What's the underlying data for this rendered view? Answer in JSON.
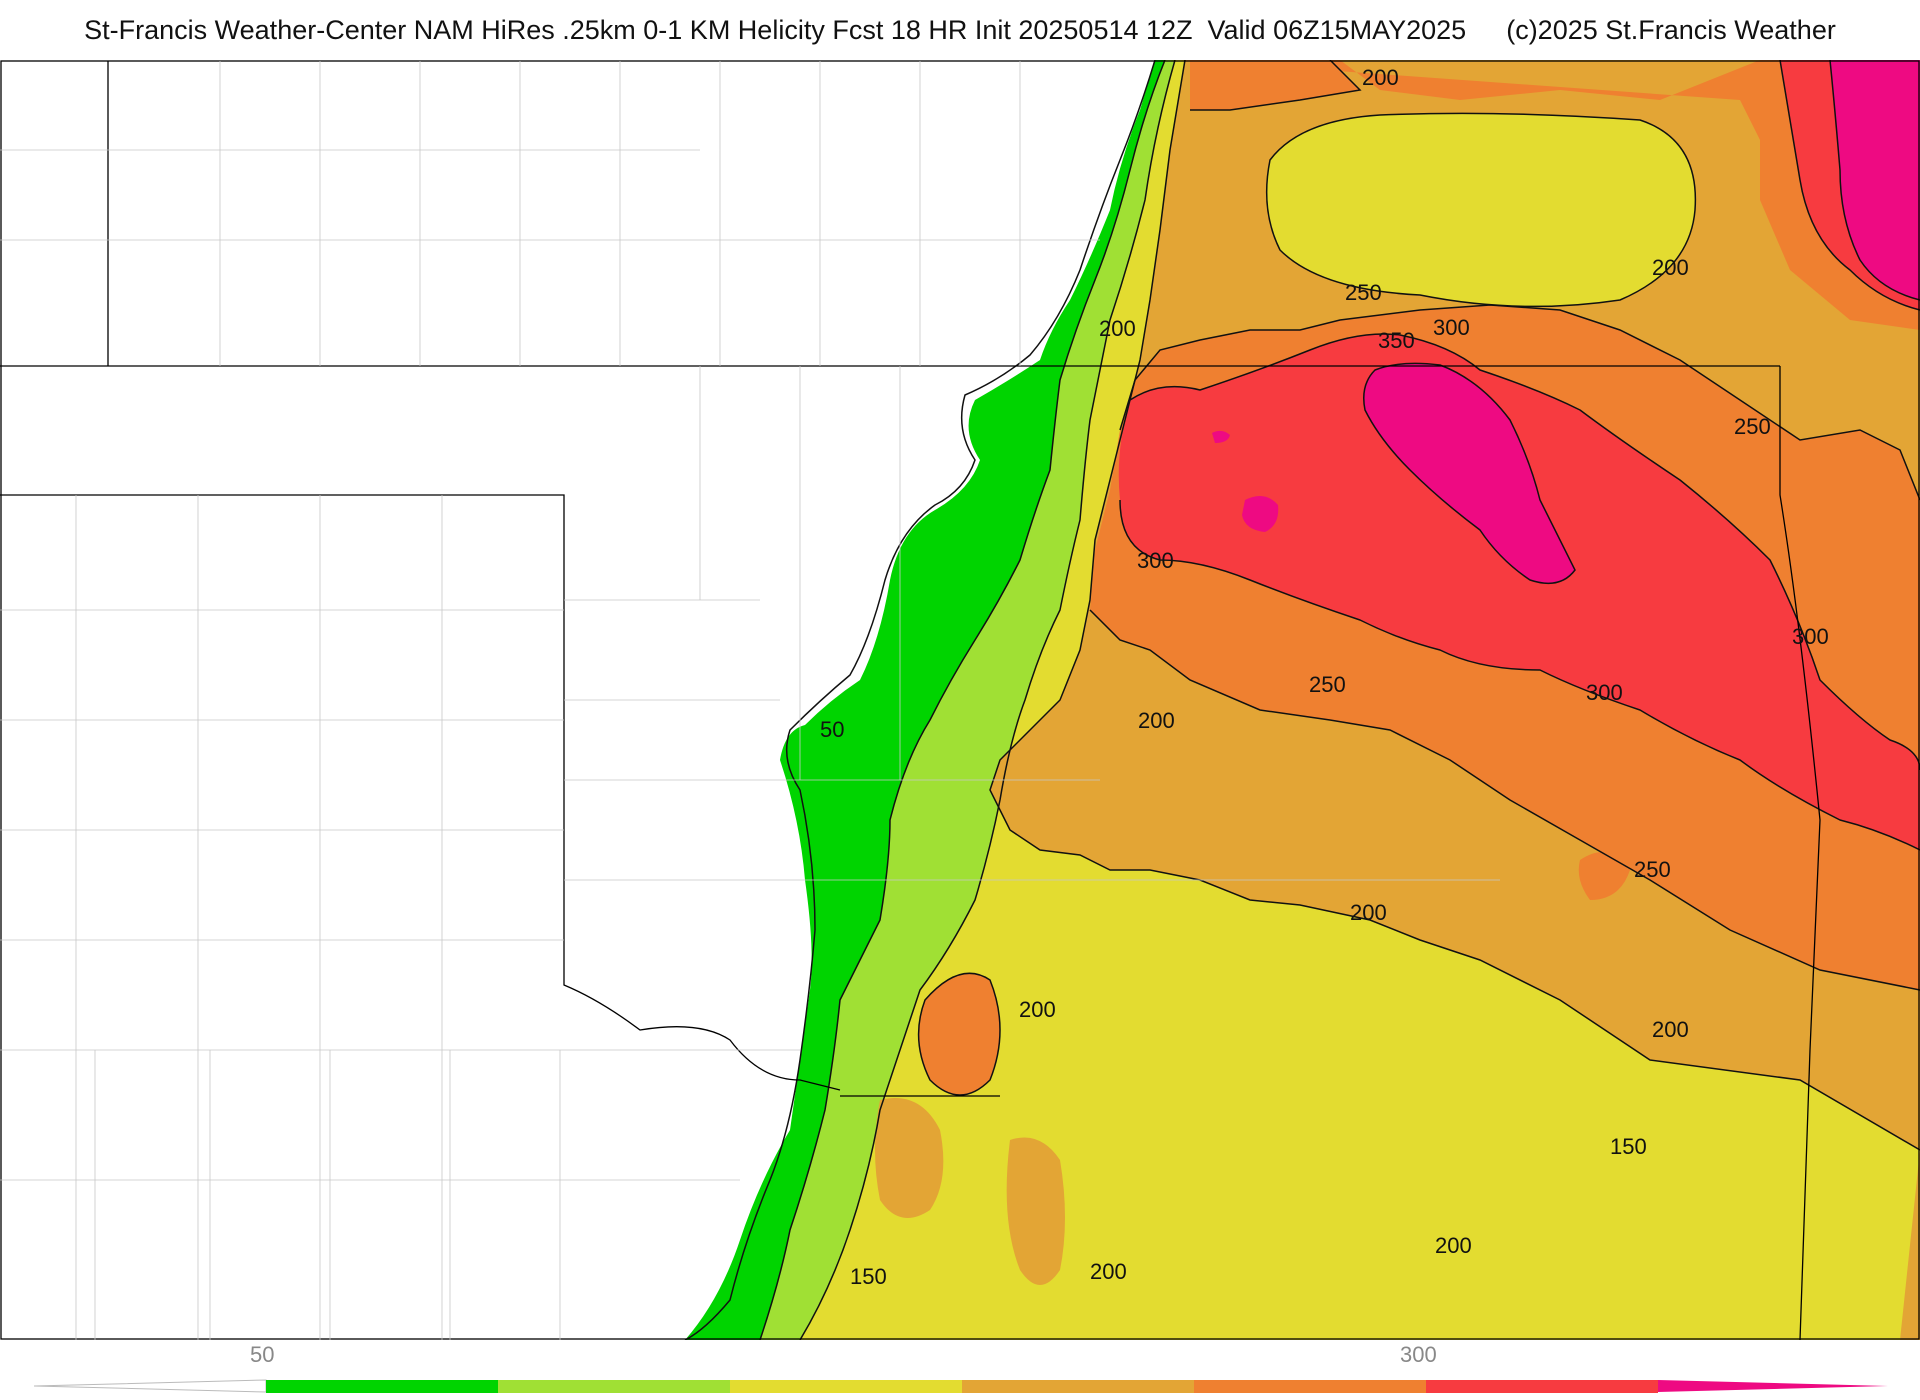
{
  "header": {
    "title": "St-Francis Weather-Center NAM HiRes .25km 0-1 KM Helicity Fcst 18 HR Init 20250514 12Z  Valid 06Z15MAY2025",
    "copyright": "(c)2025 St.Francis Weather"
  },
  "colorbar": {
    "colors": [
      "#ffffff",
      "#00d400",
      "#a0e034",
      "#e3dc30",
      "#e3a535",
      "#ef8030",
      "#f73b40",
      "#ee0a82"
    ],
    "tick_labels": [
      "50",
      "300"
    ]
  },
  "contour_labels": [
    "200",
    "200",
    "250",
    "300",
    "350",
    "250",
    "300",
    "300",
    "250",
    "300",
    "200",
    "50",
    "250",
    "200",
    "200",
    "200",
    "200",
    "150",
    "200",
    "150",
    "200"
  ],
  "map": {
    "field": "0-1 KM Helicity",
    "color_bins": [
      "<50",
      "50-100",
      "100-150",
      "150-200",
      "200-250",
      "250-300",
      "300-350",
      ">350"
    ]
  }
}
